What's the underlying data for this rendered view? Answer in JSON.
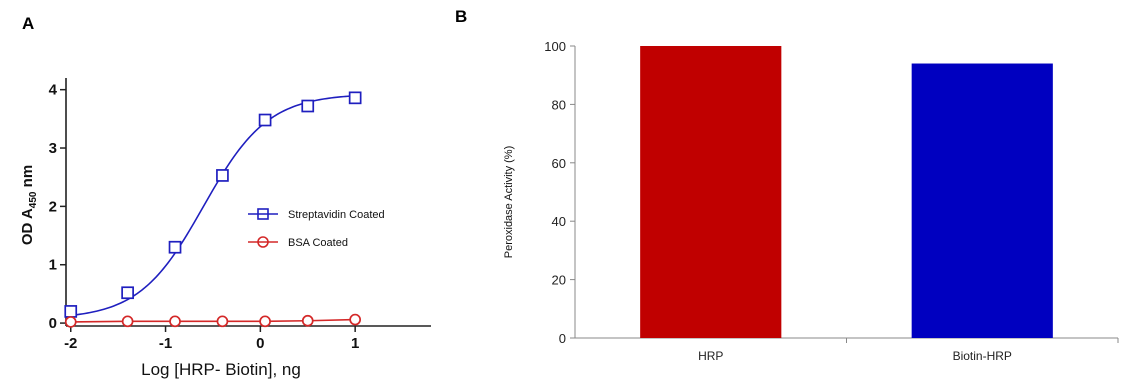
{
  "panels": {
    "a_label": "A",
    "b_label": "B"
  },
  "chart_data": [
    {
      "type": "line",
      "panel": "A",
      "title": "",
      "xlabel": "Log [HRP- Biotin], ng",
      "ylabel_prefix": "OD A",
      "ylabel_sub": "450",
      "ylabel_suffix": " nm",
      "xlim": [
        -2.05,
        1.8
      ],
      "ylim": [
        -0.05,
        4.2
      ],
      "xticks": [
        -2,
        -1,
        0,
        1
      ],
      "yticks": [
        0,
        1,
        2,
        3,
        4
      ],
      "legend_position": "right-middle",
      "series": [
        {
          "name": "Streptavidin Coated",
          "color": "#1f1fbf",
          "marker": "square",
          "x": [
            -2.0,
            -1.4,
            -0.9,
            -0.4,
            0.05,
            0.5,
            1.0
          ],
          "y": [
            0.2,
            0.52,
            1.3,
            2.53,
            3.48,
            3.72,
            3.86
          ],
          "fit": {
            "model": "4PL",
            "bottom": 0.07,
            "top": 3.93,
            "logec50": -0.6,
            "hill": 1.28
          }
        },
        {
          "name": "BSA Coated",
          "color": "#d42828",
          "marker": "circle",
          "x": [
            -2.0,
            -1.4,
            -0.9,
            -0.4,
            0.05,
            0.5,
            1.0
          ],
          "y": [
            0.02,
            0.03,
            0.03,
            0.03,
            0.03,
            0.04,
            0.06
          ]
        }
      ]
    },
    {
      "type": "bar",
      "panel": "B",
      "title": "",
      "xlabel": "",
      "ylabel": "Peroxidase Activity (%)",
      "ylim": [
        0,
        100
      ],
      "yticks": [
        0,
        20,
        40,
        60,
        80,
        100
      ],
      "categories": [
        "HRP",
        "Biotin-HRP"
      ],
      "values": [
        100,
        94
      ],
      "colors": [
        "#c00000",
        "#0000c0"
      ]
    }
  ]
}
